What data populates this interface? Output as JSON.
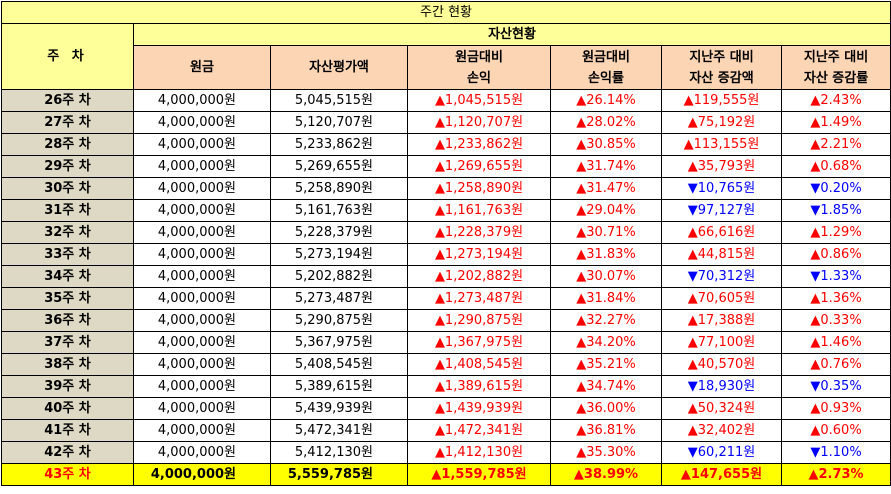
{
  "title": "주간 현황",
  "header": {
    "week": "주 차",
    "group": "자산현황",
    "cols": [
      {
        "l1": "원금",
        "l2": ""
      },
      {
        "l1": "자산평가액",
        "l2": ""
      },
      {
        "l1": "원금대비",
        "l2": "손익"
      },
      {
        "l1": "원금대비",
        "l2": "손익률"
      },
      {
        "l1": "지난주 대비",
        "l2": "자산 증감액"
      },
      {
        "l1": "지난주 대비",
        "l2": "자산 증감률"
      }
    ]
  },
  "colors": {
    "up": "#ff0000",
    "down": "#0000ff",
    "highlight": "#ffff00"
  },
  "rows": [
    {
      "week": "26주 차",
      "principal": "4,000,000원",
      "value": "5,045,515원",
      "pl": "▲1,045,515원",
      "plr": "▲26.14%",
      "chg": "▲119,555원",
      "chgr": "▲2.43%",
      "dir": "up"
    },
    {
      "week": "27주 차",
      "principal": "4,000,000원",
      "value": "5,120,707원",
      "pl": "▲1,120,707원",
      "plr": "▲28.02%",
      "chg": "▲75,192원",
      "chgr": "▲1.49%",
      "dir": "up"
    },
    {
      "week": "28주 차",
      "principal": "4,000,000원",
      "value": "5,233,862원",
      "pl": "▲1,233,862원",
      "plr": "▲30.85%",
      "chg": "▲113,155원",
      "chgr": "▲2.21%",
      "dir": "up"
    },
    {
      "week": "29주 차",
      "principal": "4,000,000원",
      "value": "5,269,655원",
      "pl": "▲1,269,655원",
      "plr": "▲31.74%",
      "chg": "▲35,793원",
      "chgr": "▲0.68%",
      "dir": "up"
    },
    {
      "week": "30주 차",
      "principal": "4,000,000원",
      "value": "5,258,890원",
      "pl": "▲1,258,890원",
      "plr": "▲31.47%",
      "chg": "▼10,765원",
      "chgr": "▼0.20%",
      "dir": "down"
    },
    {
      "week": "31주 차",
      "principal": "4,000,000원",
      "value": "5,161,763원",
      "pl": "▲1,161,763원",
      "plr": "▲29.04%",
      "chg": "▼97,127원",
      "chgr": "▼1.85%",
      "dir": "down"
    },
    {
      "week": "32주 차",
      "principal": "4,000,000원",
      "value": "5,228,379원",
      "pl": "▲1,228,379원",
      "plr": "▲30.71%",
      "chg": "▲66,616원",
      "chgr": "▲1.29%",
      "dir": "up"
    },
    {
      "week": "33주 차",
      "principal": "4,000,000원",
      "value": "5,273,194원",
      "pl": "▲1,273,194원",
      "plr": "▲31.83%",
      "chg": "▲44,815원",
      "chgr": "▲0.86%",
      "dir": "up"
    },
    {
      "week": "34주 차",
      "principal": "4,000,000원",
      "value": "5,202,882원",
      "pl": "▲1,202,882원",
      "plr": "▲30.07%",
      "chg": "▼70,312원",
      "chgr": "▼1.33%",
      "dir": "down"
    },
    {
      "week": "35주 차",
      "principal": "4,000,000원",
      "value": "5,273,487원",
      "pl": "▲1,273,487원",
      "plr": "▲31.84%",
      "chg": "▲70,605원",
      "chgr": "▲1.36%",
      "dir": "up"
    },
    {
      "week": "36주 차",
      "principal": "4,000,000원",
      "value": "5,290,875원",
      "pl": "▲1,290,875원",
      "plr": "▲32.27%",
      "chg": "▲17,388원",
      "chgr": "▲0.33%",
      "dir": "up"
    },
    {
      "week": "37주 차",
      "principal": "4,000,000원",
      "value": "5,367,975원",
      "pl": "▲1,367,975원",
      "plr": "▲34.20%",
      "chg": "▲77,100원",
      "chgr": "▲1.46%",
      "dir": "up"
    },
    {
      "week": "38주 차",
      "principal": "4,000,000원",
      "value": "5,408,545원",
      "pl": "▲1,408,545원",
      "plr": "▲35.21%",
      "chg": "▲40,570원",
      "chgr": "▲0.76%",
      "dir": "up"
    },
    {
      "week": "39주 차",
      "principal": "4,000,000원",
      "value": "5,389,615원",
      "pl": "▲1,389,615원",
      "plr": "▲34.74%",
      "chg": "▼18,930원",
      "chgr": "▼0.35%",
      "dir": "down"
    },
    {
      "week": "40주 차",
      "principal": "4,000,000원",
      "value": "5,439,939원",
      "pl": "▲1,439,939원",
      "plr": "▲36.00%",
      "chg": "▲50,324원",
      "chgr": "▲0.93%",
      "dir": "up"
    },
    {
      "week": "41주 차",
      "principal": "4,000,000원",
      "value": "5,472,341원",
      "pl": "▲1,472,341원",
      "plr": "▲36.81%",
      "chg": "▲32,402원",
      "chgr": "▲0.60%",
      "dir": "up"
    },
    {
      "week": "42주 차",
      "principal": "4,000,000원",
      "value": "5,412,130원",
      "pl": "▲1,412,130원",
      "plr": "▲35.30%",
      "chg": "▼60,211원",
      "chgr": "▼1.10%",
      "dir": "down"
    },
    {
      "week": "43주 차",
      "principal": "4,000,000원",
      "value": "5,559,785원",
      "pl": "▲1,559,785원",
      "plr": "▲38.99%",
      "chg": "▲147,655원",
      "chgr": "▲2.73%",
      "dir": "up",
      "current": true
    }
  ]
}
